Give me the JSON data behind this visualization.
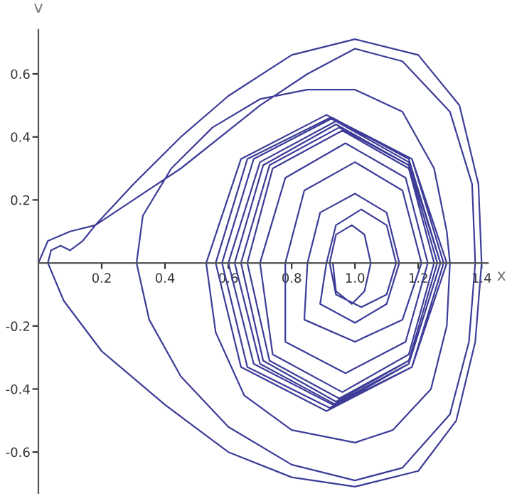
{
  "chart_data": {
    "type": "line",
    "xlabel": "x",
    "ylabel": "v",
    "xlim": [
      0,
      1.42
    ],
    "ylim": [
      -0.73,
      0.74
    ],
    "xticks": [
      0.2,
      0.4,
      0.6,
      0.8,
      {
        "value": 1.0,
        "label": "1.0"
      },
      1.2,
      1.4
    ],
    "yticks": [
      -0.6,
      -0.4,
      -0.2,
      0.2,
      0.4,
      0.6
    ],
    "grid": false,
    "legend": false,
    "marker": "none",
    "line_style": "solid",
    "series": [
      {
        "color": "#3d3d99",
        "x": [
          0,
          0.03,
          0.1,
          0.18,
          0.3,
          0.45,
          0.6,
          0.8,
          1.0,
          1.2,
          1.33,
          1.39,
          1.4,
          1.38,
          1.32,
          1.2,
          1.0,
          0.8,
          0.6,
          0.4,
          0.2,
          0.08,
          0.03,
          0.04,
          0.07,
          0.1,
          0.14,
          0.18,
          0.3,
          0.45,
          0.6,
          0.7,
          0.85,
          1.0,
          1.15,
          1.3,
          1.37,
          1.38,
          1.36,
          1.3,
          1.15,
          1.0,
          0.8,
          0.6,
          0.45,
          0.35,
          0.31,
          0.33,
          0.42,
          0.55,
          0.7,
          0.85,
          1.0,
          1.15,
          1.25,
          1.29,
          1.3,
          1.29,
          1.24,
          1.12,
          1.0,
          0.8,
          0.65,
          0.56,
          0.53,
          0.64,
          0.91,
          1.18,
          1.29,
          1.18,
          0.91,
          0.64,
          0.56,
          0.66,
          0.92,
          1.18,
          1.28,
          1.18,
          0.92,
          0.66,
          0.58,
          0.68,
          0.93,
          1.17,
          1.27,
          1.17,
          0.93,
          0.68,
          0.6,
          0.7,
          0.94,
          1.17,
          1.27,
          1.17,
          0.94,
          0.7,
          0.62,
          0.71,
          0.94,
          1.17,
          1.26,
          1.17,
          0.94,
          0.71,
          0.64,
          0.73,
          0.95,
          1.17,
          1.26,
          1.17,
          0.95,
          0.73,
          0.66,
          0.74,
          0.96,
          1.17,
          1.25,
          1.17,
          0.96,
          0.74,
          0.7,
          0.78,
          0.97,
          1.16,
          1.23,
          1.16,
          0.97,
          0.78,
          0.78,
          0.84,
          1.0,
          1.15,
          1.21,
          1.15,
          1.0,
          0.84,
          0.85,
          0.89,
          1.0,
          1.1,
          1.14,
          1.1,
          1.0,
          0.89,
          0.91,
          0.94,
          1.02,
          1.1,
          1.13,
          1.1,
          1.02,
          0.94,
          0.92,
          0.94,
          0.99,
          1.03,
          1.05,
          1.03,
          0.99,
          0.94,
          0.93
        ],
        "values": [
          0,
          0.07,
          0.1,
          0.12,
          0.25,
          0.4,
          0.53,
          0.66,
          0.71,
          0.66,
          0.5,
          0.25,
          0,
          -0.25,
          -0.5,
          -0.66,
          -0.71,
          -0.68,
          -0.6,
          -0.45,
          -0.28,
          -0.12,
          0,
          0.04,
          0.055,
          0.04,
          0.07,
          0.12,
          0.2,
          0.3,
          0.42,
          0.5,
          0.6,
          0.68,
          0.64,
          0.48,
          0.25,
          0,
          -0.25,
          -0.48,
          -0.65,
          -0.69,
          -0.64,
          -0.52,
          -0.36,
          -0.18,
          0,
          0.15,
          0.3,
          0.43,
          0.52,
          0.55,
          0.55,
          0.48,
          0.3,
          0.1,
          0,
          -0.2,
          -0.4,
          -0.53,
          -0.57,
          -0.53,
          -0.42,
          -0.22,
          0,
          0.33,
          0.47,
          0.33,
          0,
          -0.33,
          -0.47,
          -0.33,
          0,
          0.33,
          0.46,
          0.33,
          0,
          -0.33,
          -0.46,
          -0.33,
          0,
          0.33,
          0.46,
          0.33,
          0,
          -0.32,
          -0.45,
          -0.32,
          0,
          0.32,
          0.45,
          0.32,
          0,
          -0.32,
          -0.45,
          -0.32,
          0,
          0.31,
          0.44,
          0.31,
          0,
          -0.31,
          -0.44,
          -0.31,
          0,
          0.31,
          0.43,
          0.31,
          0,
          -0.31,
          -0.43,
          -0.31,
          0,
          0.3,
          0.42,
          0.3,
          0,
          -0.29,
          -0.41,
          -0.29,
          0,
          0.27,
          0.38,
          0.27,
          0,
          -0.25,
          -0.35,
          -0.25,
          0,
          0.23,
          0.32,
          0.23,
          0,
          -0.18,
          -0.25,
          -0.18,
          0,
          0.16,
          0.22,
          0.16,
          0,
          -0.13,
          -0.19,
          -0.13,
          0,
          0.12,
          0.17,
          0.12,
          0,
          -0.1,
          -0.14,
          -0.1,
          0,
          0.09,
          0.12,
          0.09,
          0,
          -0.09,
          -0.13,
          -0.09,
          0
        ]
      }
    ]
  }
}
